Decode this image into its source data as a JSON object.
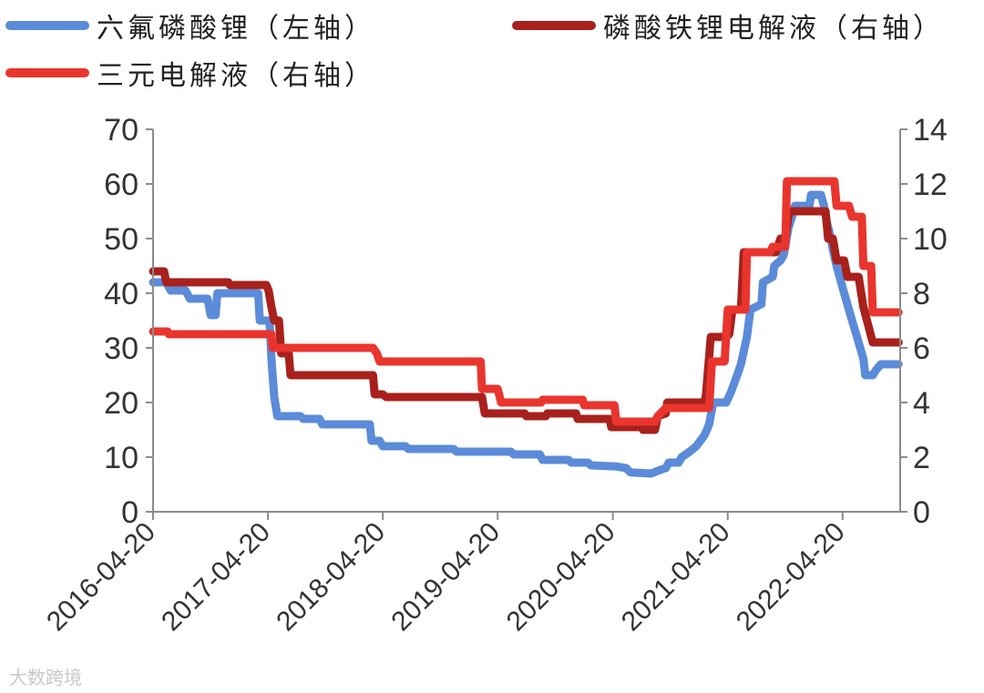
{
  "chart_data": {
    "type": "line",
    "title": "",
    "xlabel": "",
    "ylabel": "",
    "x_ticks": [
      "2016-04-20",
      "2017-04-20",
      "2018-04-20",
      "2019-04-20",
      "2020-04-20",
      "2021-04-20",
      "2022-04-20"
    ],
    "x_range": [
      "2016-04-20",
      "2022-10-20"
    ],
    "y_left": {
      "range": [
        0,
        70
      ],
      "ticks": [
        0,
        10,
        20,
        30,
        40,
        50,
        60,
        70
      ]
    },
    "y_right": {
      "range": [
        0,
        14
      ],
      "ticks": [
        0,
        2,
        4,
        6,
        8,
        10,
        12,
        14
      ]
    },
    "grid": false,
    "legend_position": "top",
    "series": [
      {
        "name": "六氟磷酸锂（左轴）",
        "axis": "left",
        "color": "#5b8bd9",
        "points": [
          [
            "2016-04-20",
            42
          ],
          [
            "2016-06-01",
            42
          ],
          [
            "2016-06-15",
            40.5
          ],
          [
            "2016-08-01",
            40.5
          ],
          [
            "2016-08-15",
            39
          ],
          [
            "2016-10-10",
            39
          ],
          [
            "2016-10-20",
            36
          ],
          [
            "2016-11-05",
            36
          ],
          [
            "2016-11-10",
            40
          ],
          [
            "2017-03-20",
            40
          ],
          [
            "2017-03-25",
            35
          ],
          [
            "2017-04-25",
            35
          ],
          [
            "2017-05-01",
            28
          ],
          [
            "2017-05-10",
            21
          ],
          [
            "2017-05-20",
            17.5
          ],
          [
            "2017-08-01",
            17.5
          ],
          [
            "2017-08-10",
            17
          ],
          [
            "2017-10-01",
            17
          ],
          [
            "2017-10-10",
            16
          ],
          [
            "2018-03-10",
            16
          ],
          [
            "2018-03-15",
            13
          ],
          [
            "2018-04-10",
            13
          ],
          [
            "2018-04-20",
            12
          ],
          [
            "2018-07-01",
            12
          ],
          [
            "2018-07-10",
            11.5
          ],
          [
            "2018-12-01",
            11.5
          ],
          [
            "2018-12-10",
            11
          ],
          [
            "2019-06-01",
            11
          ],
          [
            "2019-06-10",
            10.5
          ],
          [
            "2019-09-01",
            10.5
          ],
          [
            "2019-09-10",
            9.5
          ],
          [
            "2019-12-01",
            9.5
          ],
          [
            "2019-12-10",
            9
          ],
          [
            "2020-02-01",
            9
          ],
          [
            "2020-02-10",
            8.5
          ],
          [
            "2020-05-01",
            8.3
          ],
          [
            "2020-06-01",
            8
          ],
          [
            "2020-06-15",
            7.2
          ],
          [
            "2020-08-20",
            7
          ],
          [
            "2020-09-10",
            7.5
          ],
          [
            "2020-10-05",
            8
          ],
          [
            "2020-10-15",
            9
          ],
          [
            "2020-11-15",
            9
          ],
          [
            "2020-11-25",
            10
          ],
          [
            "2020-12-20",
            11
          ],
          [
            "2021-01-10",
            12
          ],
          [
            "2021-02-05",
            14
          ],
          [
            "2021-02-20",
            16
          ],
          [
            "2021-03-05",
            20
          ],
          [
            "2021-04-15",
            20
          ],
          [
            "2021-05-01",
            22
          ],
          [
            "2021-05-20",
            25
          ],
          [
            "2021-06-01",
            27
          ],
          [
            "2021-06-20",
            32
          ],
          [
            "2021-07-01",
            37
          ],
          [
            "2021-08-05",
            38
          ],
          [
            "2021-08-10",
            42
          ],
          [
            "2021-09-10",
            43
          ],
          [
            "2021-09-15",
            45
          ],
          [
            "2021-10-05",
            46
          ],
          [
            "2021-10-15",
            47
          ],
          [
            "2021-10-30",
            52
          ],
          [
            "2021-11-10",
            54
          ],
          [
            "2021-11-20",
            56
          ],
          [
            "2022-01-05",
            56
          ],
          [
            "2022-01-10",
            58
          ],
          [
            "2022-02-10",
            58
          ],
          [
            "2022-02-20",
            56
          ],
          [
            "2022-03-01",
            53
          ],
          [
            "2022-03-10",
            51
          ],
          [
            "2022-03-20",
            48
          ],
          [
            "2022-04-01",
            45
          ],
          [
            "2022-04-25",
            40
          ],
          [
            "2022-05-20",
            35
          ],
          [
            "2022-06-10",
            31
          ],
          [
            "2022-06-25",
            28
          ],
          [
            "2022-07-01",
            25
          ],
          [
            "2022-07-25",
            25
          ],
          [
            "2022-08-05",
            26
          ],
          [
            "2022-08-20",
            27
          ],
          [
            "2022-10-15",
            27
          ]
        ]
      },
      {
        "name": "磷酸铁锂电解液（右轴）",
        "axis": "right",
        "color": "#a8211c",
        "points": [
          [
            "2016-04-20",
            8.8
          ],
          [
            "2016-05-25",
            8.8
          ],
          [
            "2016-06-01",
            8.4
          ],
          [
            "2016-12-15",
            8.4
          ],
          [
            "2016-12-20",
            8.3
          ],
          [
            "2017-04-15",
            8.3
          ],
          [
            "2017-04-22",
            8.1
          ],
          [
            "2017-05-01",
            7.5
          ],
          [
            "2017-05-10",
            7
          ],
          [
            "2017-05-25",
            7
          ],
          [
            "2017-06-01",
            5.8
          ],
          [
            "2017-06-25",
            5.8
          ],
          [
            "2017-07-01",
            5
          ],
          [
            "2018-03-20",
            5
          ],
          [
            "2018-03-25",
            4.3
          ],
          [
            "2018-04-20",
            4.3
          ],
          [
            "2018-05-01",
            4.2
          ],
          [
            "2019-03-01",
            4.2
          ],
          [
            "2019-03-10",
            3.6
          ],
          [
            "2019-07-15",
            3.6
          ],
          [
            "2019-07-20",
            3.5
          ],
          [
            "2019-09-20",
            3.5
          ],
          [
            "2019-09-25",
            3.6
          ],
          [
            "2019-12-25",
            3.6
          ],
          [
            "2019-12-30",
            3.4
          ],
          [
            "2020-04-10",
            3.4
          ],
          [
            "2020-04-15",
            3.1
          ],
          [
            "2020-07-20",
            3.1
          ],
          [
            "2020-07-25",
            3
          ],
          [
            "2020-09-01",
            3
          ],
          [
            "2020-09-10",
            3.5
          ],
          [
            "2020-10-05",
            3.6
          ],
          [
            "2020-10-10",
            4
          ],
          [
            "2021-02-05",
            4
          ],
          [
            "2021-02-10",
            4.3
          ],
          [
            "2021-02-25",
            6.4
          ],
          [
            "2021-04-15",
            6.4
          ],
          [
            "2021-04-25",
            6.5
          ],
          [
            "2021-05-05",
            7.4
          ],
          [
            "2021-06-01",
            7.4
          ],
          [
            "2021-06-10",
            9.5
          ],
          [
            "2021-09-20",
            9.5
          ],
          [
            "2021-10-05",
            10
          ],
          [
            "2021-10-20",
            10
          ],
          [
            "2021-11-01",
            11
          ],
          [
            "2022-02-25",
            11
          ],
          [
            "2022-03-05",
            10
          ],
          [
            "2022-03-20",
            10
          ],
          [
            "2022-04-01",
            9.2
          ],
          [
            "2022-04-25",
            9.2
          ],
          [
            "2022-05-05",
            8.6
          ],
          [
            "2022-06-10",
            8.6
          ],
          [
            "2022-06-25",
            7.5
          ],
          [
            "2022-07-25",
            6.2
          ],
          [
            "2022-10-15",
            6.2
          ]
        ]
      },
      {
        "name": "三元电解液（右轴）",
        "axis": "right",
        "color": "#e9352e",
        "points": [
          [
            "2016-04-20",
            6.6
          ],
          [
            "2016-06-05",
            6.6
          ],
          [
            "2016-06-10",
            6.5
          ],
          [
            "2017-05-01",
            6.5
          ],
          [
            "2017-05-05",
            6
          ],
          [
            "2018-03-20",
            6
          ],
          [
            "2018-04-01",
            5.8
          ],
          [
            "2018-04-10",
            5.5
          ],
          [
            "2019-02-25",
            5.5
          ],
          [
            "2019-03-01",
            4.5
          ],
          [
            "2019-04-20",
            4.5
          ],
          [
            "2019-05-01",
            4
          ],
          [
            "2019-09-05",
            4
          ],
          [
            "2019-09-10",
            4.1
          ],
          [
            "2020-01-15",
            4.1
          ],
          [
            "2020-01-20",
            3.9
          ],
          [
            "2020-04-25",
            3.9
          ],
          [
            "2020-05-01",
            3.3
          ],
          [
            "2020-09-01",
            3.3
          ],
          [
            "2020-09-10",
            3.5
          ],
          [
            "2020-10-05",
            3.8
          ],
          [
            "2021-02-20",
            3.8
          ],
          [
            "2021-03-01",
            5.5
          ],
          [
            "2021-04-10",
            5.5
          ],
          [
            "2021-04-20",
            7.4
          ],
          [
            "2021-06-15",
            7.4
          ],
          [
            "2021-06-20",
            9.5
          ],
          [
            "2021-09-01",
            9.5
          ],
          [
            "2021-09-10",
            9.7
          ],
          [
            "2021-10-20",
            9.7
          ],
          [
            "2021-10-25",
            12.1
          ],
          [
            "2022-03-25",
            12.1
          ],
          [
            "2022-04-01",
            11.2
          ],
          [
            "2022-05-10",
            11.2
          ],
          [
            "2022-05-20",
            10.8
          ],
          [
            "2022-06-20",
            10.8
          ],
          [
            "2022-06-25",
            9
          ],
          [
            "2022-07-20",
            9
          ],
          [
            "2022-07-25",
            7.3
          ],
          [
            "2022-10-15",
            7.3
          ]
        ]
      }
    ]
  },
  "watermark": "大数跨境"
}
